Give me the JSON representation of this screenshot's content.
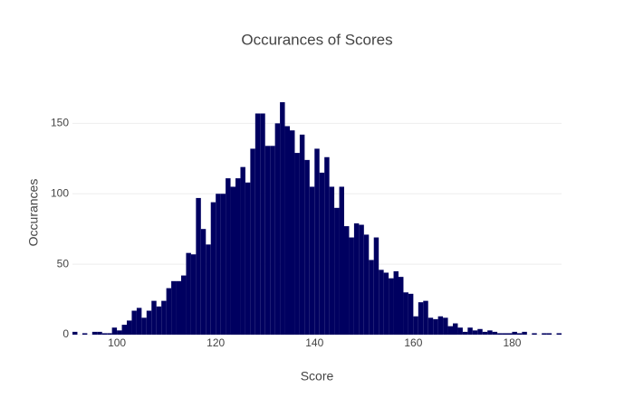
{
  "chart_data": {
    "type": "histogram",
    "title": "Occurances of Scores",
    "x_label": "Score",
    "y_label": "Occurances",
    "bins": [
      91,
      92,
      93,
      94,
      95,
      96,
      97,
      98,
      99,
      100,
      101,
      102,
      103,
      104,
      105,
      106,
      107,
      108,
      109,
      110,
      111,
      112,
      113,
      114,
      115,
      116,
      117,
      118,
      119,
      120,
      121,
      122,
      123,
      124,
      125,
      126,
      127,
      128,
      129,
      130,
      131,
      132,
      133,
      134,
      135,
      136,
      137,
      138,
      139,
      140,
      141,
      142,
      143,
      144,
      145,
      146,
      147,
      148,
      149,
      150,
      151,
      152,
      153,
      154,
      155,
      156,
      157,
      158,
      159,
      160,
      161,
      162,
      163,
      164,
      165,
      166,
      167,
      168,
      169,
      170,
      171,
      172,
      173,
      174,
      175,
      176,
      177,
      178,
      179,
      180,
      181,
      182,
      183,
      184,
      185,
      186,
      187,
      188,
      189,
      190
    ],
    "values": [
      2,
      0,
      1,
      0,
      2,
      2,
      1,
      1,
      5,
      3,
      7,
      10,
      17,
      19,
      12,
      17,
      24,
      20,
      24,
      33,
      38,
      38,
      42,
      58,
      57,
      97,
      75,
      64,
      94,
      100,
      100,
      111,
      105,
      111,
      119,
      108,
      132,
      157,
      157,
      134,
      134,
      150,
      165,
      148,
      145,
      129,
      142,
      124,
      105,
      132,
      115,
      126,
      105,
      90,
      105,
      77,
      69,
      79,
      78,
      71,
      53,
      69,
      46,
      44,
      40,
      45,
      41,
      30,
      29,
      13,
      23,
      24,
      12,
      11,
      13,
      12,
      6,
      8,
      5,
      2,
      5,
      3,
      4,
      2,
      3,
      2,
      1,
      1,
      1,
      2,
      1,
      2,
      0,
      1,
      0,
      1,
      1,
      0,
      1
    ],
    "color": "#000060",
    "xlim": [
      91,
      190
    ],
    "xticks": [
      100,
      120,
      140,
      160,
      180
    ],
    "ylim": [
      0,
      174
    ],
    "yticks": [
      0,
      50,
      100,
      150
    ],
    "grid": true
  }
}
